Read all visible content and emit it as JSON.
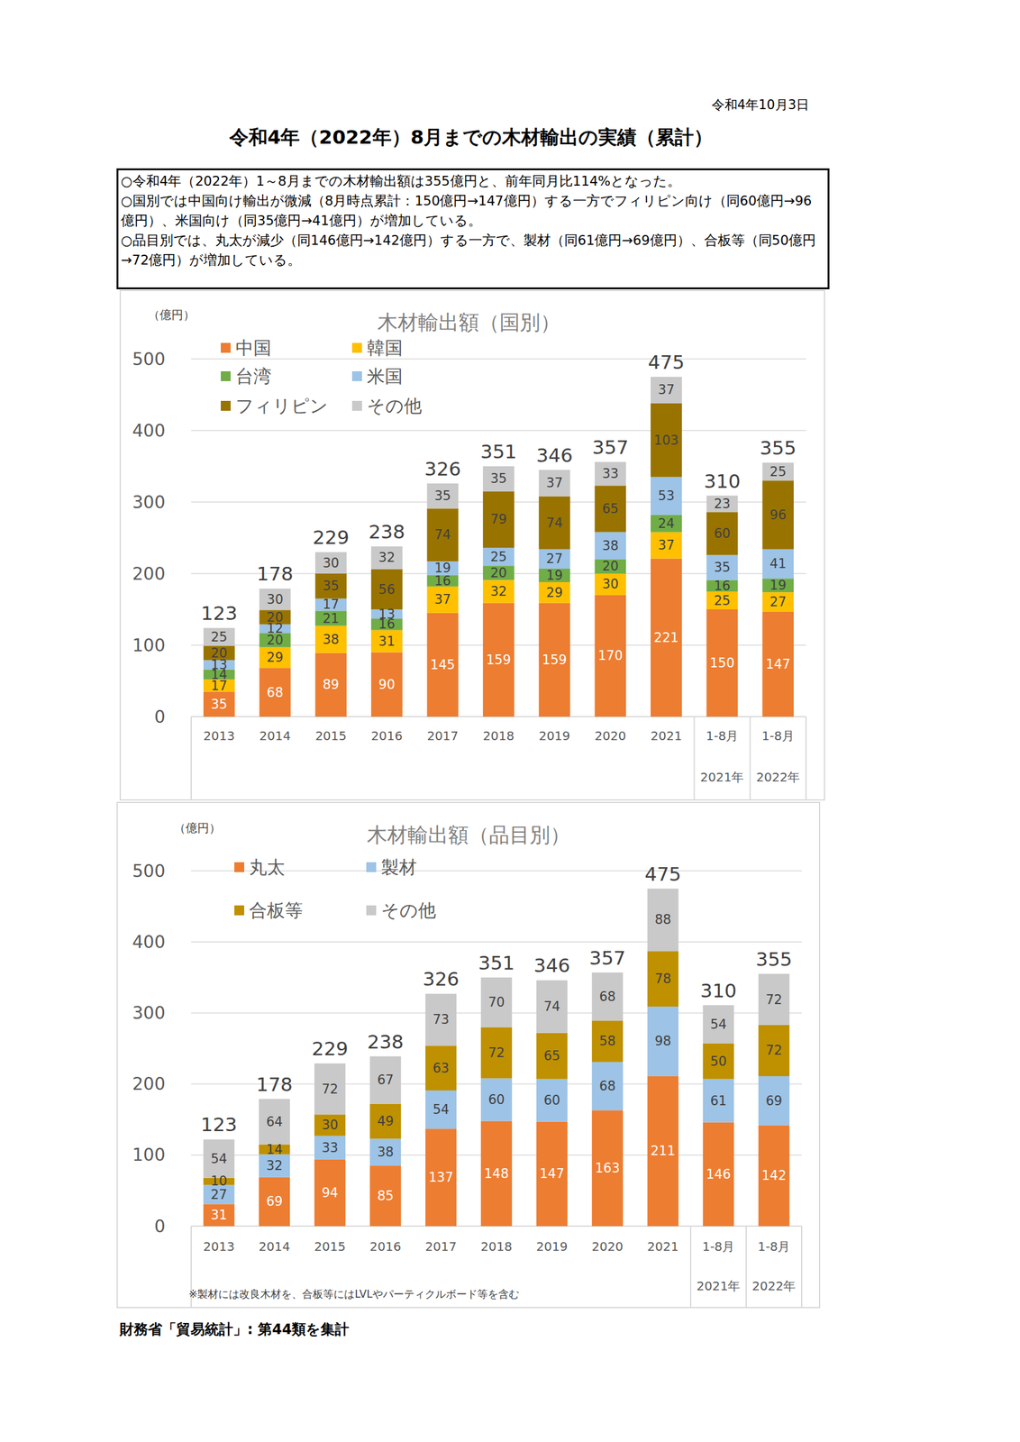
{
  "header": {
    "date": "令和4年10月3日",
    "title": "令和4年（2022年）8月までの木材輸出の実績（累計）",
    "bullets": [
      "○令和4年（2022年）1～8月までの木材輸出額は355億円と、前年同月比114%となった。",
      "○国別では中国向け輸出が微減（8月時点累計：150億円→147億円）する一方でフィリピン向け（同60億円→96億円）、米国向け（同35億円→41億円）が増加している。",
      "○品目別では、丸太が減少（同146億円→142億円）する一方で、製材（同61億円→69億円）、合板等（同50億円→72億円）が増加している。"
    ]
  },
  "chart_data": [
    {
      "type": "bar",
      "stacked": true,
      "title": "木材輸出額（国別）",
      "y_label": "（億円）",
      "categories": [
        "2013",
        "2014",
        "2015",
        "2016",
        "2017",
        "2018",
        "2019",
        "2020",
        "2021",
        "1-8月",
        "1-8月"
      ],
      "category_groups": [
        null,
        null,
        null,
        null,
        null,
        null,
        null,
        null,
        null,
        "2021年",
        "2022年"
      ],
      "series": [
        {
          "name": "中国",
          "color": "#ed7d31",
          "values": [
            35,
            68,
            89,
            90,
            145,
            159,
            159,
            170,
            221,
            150,
            147
          ]
        },
        {
          "name": "韓国",
          "color": "#ffc000",
          "values": [
            17,
            29,
            38,
            31,
            37,
            32,
            29,
            30,
            37,
            25,
            27
          ]
        },
        {
          "name": "台湾",
          "color": "#70ad47",
          "values": [
            14,
            20,
            21,
            16,
            16,
            20,
            19,
            20,
            24,
            16,
            19
          ]
        },
        {
          "name": "米国",
          "color": "#9dc3e6",
          "values": [
            13,
            12,
            17,
            13,
            19,
            25,
            27,
            38,
            53,
            35,
            41
          ]
        },
        {
          "name": "フィリピン",
          "color": "#997300",
          "values": [
            20,
            20,
            35,
            56,
            74,
            79,
            74,
            65,
            103,
            60,
            96
          ]
        },
        {
          "name": "その他",
          "color": "#c9c9c9",
          "values": [
            25,
            30,
            30,
            32,
            35,
            35,
            37,
            33,
            37,
            23,
            25
          ]
        }
      ],
      "totals": [
        123,
        178,
        229,
        238,
        326,
        351,
        346,
        357,
        475,
        310,
        355
      ],
      "ylim": [
        0,
        500
      ],
      "yticks": [
        0,
        100,
        200,
        300,
        400,
        500
      ],
      "grid": true,
      "data_labels": true,
      "legend": "top-left"
    },
    {
      "type": "bar",
      "stacked": true,
      "title": "木材輸出額（品目別）",
      "y_label": "（億円）",
      "categories": [
        "2013",
        "2014",
        "2015",
        "2016",
        "2017",
        "2018",
        "2019",
        "2020",
        "2021",
        "1-8月",
        "1-8月"
      ],
      "category_groups": [
        null,
        null,
        null,
        null,
        null,
        null,
        null,
        null,
        null,
        "2021年",
        "2022年"
      ],
      "series": [
        {
          "name": "丸太",
          "color": "#ed7d31",
          "values": [
            31,
            69,
            94,
            85,
            137,
            148,
            147,
            163,
            211,
            146,
            142
          ]
        },
        {
          "name": "製材",
          "color": "#9dc3e6",
          "values": [
            27,
            32,
            33,
            38,
            54,
            60,
            60,
            68,
            98,
            61,
            69
          ]
        },
        {
          "name": "合板等",
          "color": "#bf9000",
          "values": [
            10,
            14,
            30,
            49,
            63,
            72,
            65,
            58,
            78,
            50,
            72
          ]
        },
        {
          "name": "その他",
          "color": "#c9c9c9",
          "values": [
            54,
            64,
            72,
            67,
            73,
            70,
            74,
            68,
            88,
            54,
            72
          ]
        }
      ],
      "totals": [
        123,
        178,
        229,
        238,
        326,
        351,
        346,
        357,
        475,
        310,
        355
      ],
      "ylim": [
        0,
        500
      ],
      "yticks": [
        0,
        100,
        200,
        300,
        400,
        500
      ],
      "grid": true,
      "data_labels": true,
      "legend": "top-left",
      "note": "※製材には改良木材を、合板等にはLVLやパーティクルボード等を含む"
    }
  ],
  "footer": {
    "source": "財務省「貿易統計」: 第44類を集計"
  }
}
